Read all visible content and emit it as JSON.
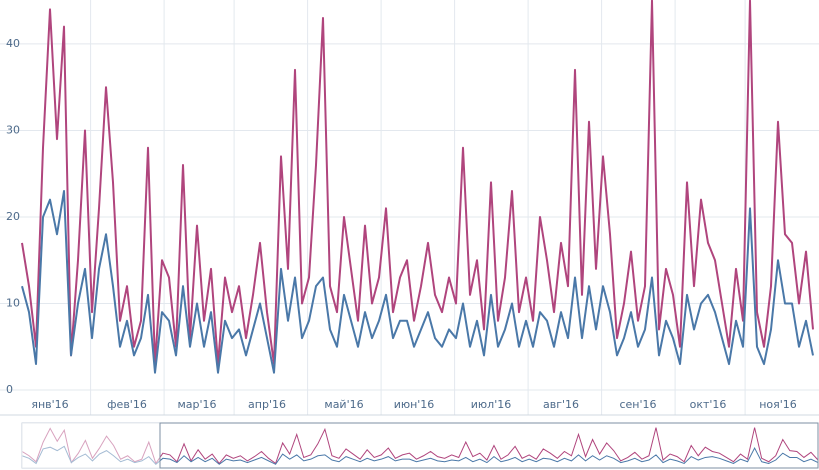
{
  "chart_data": {
    "type": "line",
    "categories": [
      null,
      null,
      null,
      null,
      "янв'16",
      null,
      null,
      null,
      null,
      null,
      null,
      null,
      null,
      null,
      null,
      "фев'16",
      null,
      null,
      null,
      null,
      null,
      null,
      null,
      null,
      null,
      "мар'16",
      null,
      null,
      null,
      null,
      null,
      null,
      null,
      null,
      null,
      "апр'16",
      null,
      null,
      null,
      null,
      null,
      null,
      null,
      null,
      null,
      null,
      "май'16",
      null,
      null,
      null,
      null,
      null,
      null,
      null,
      null,
      null,
      "июн'16",
      null,
      null,
      null,
      null,
      null,
      null,
      null,
      null,
      null,
      null,
      "июл'16",
      null,
      null,
      null,
      null,
      null,
      null,
      null,
      null,
      null,
      "авг'16",
      null,
      null,
      null,
      null,
      null,
      null,
      null,
      null,
      null,
      null,
      "сен'16",
      null,
      null,
      null,
      null,
      null,
      null,
      null,
      null,
      null,
      "окт'16",
      null,
      null,
      null,
      null,
      null,
      null,
      null,
      null,
      null,
      "ноя'16",
      null,
      null,
      null,
      null,
      null
    ],
    "series": [
      {
        "color": "#b0457d",
        "values": [
          17,
          12,
          5,
          28,
          44,
          29,
          42,
          4,
          15,
          30,
          9,
          21,
          35,
          24,
          8,
          12,
          5,
          8,
          28,
          3,
          15,
          13,
          5,
          26,
          6,
          19,
          8,
          14,
          3,
          13,
          9,
          12,
          6,
          11,
          17,
          9,
          3,
          27,
          14,
          37,
          10,
          13,
          26,
          43,
          12,
          9,
          20,
          14,
          8,
          19,
          10,
          13,
          21,
          9,
          13,
          15,
          8,
          12,
          17,
          11,
          9,
          13,
          10,
          28,
          11,
          15,
          7,
          24,
          8,
          13,
          23,
          9,
          13,
          8,
          20,
          15,
          9,
          17,
          12,
          37,
          11,
          31,
          14,
          27,
          18,
          6,
          10,
          16,
          8,
          12,
          45,
          7,
          14,
          11,
          5,
          24,
          12,
          22,
          17,
          15,
          10,
          5,
          14,
          8,
          45,
          9,
          5,
          12,
          31,
          18,
          17,
          10,
          16,
          7
        ]
      },
      {
        "color": "#4a78a8",
        "values": [
          12,
          9,
          3,
          20,
          22,
          18,
          23,
          4,
          10,
          14,
          6,
          14,
          18,
          12,
          5,
          8,
          4,
          6,
          11,
          2,
          9,
          8,
          4,
          12,
          5,
          10,
          5,
          9,
          2,
          8,
          6,
          7,
          4,
          7,
          10,
          6,
          2,
          14,
          8,
          13,
          6,
          8,
          12,
          13,
          7,
          5,
          11,
          8,
          5,
          9,
          6,
          8,
          11,
          6,
          8,
          8,
          5,
          7,
          9,
          6,
          5,
          7,
          6,
          10,
          5,
          8,
          4,
          11,
          5,
          7,
          10,
          5,
          8,
          5,
          9,
          8,
          5,
          9,
          6,
          13,
          6,
          12,
          7,
          12,
          9,
          4,
          6,
          9,
          5,
          7,
          13,
          4,
          8,
          6,
          3,
          11,
          7,
          10,
          11,
          9,
          6,
          3,
          8,
          5,
          21,
          5,
          3,
          7,
          15,
          10,
          10,
          5,
          8,
          4
        ]
      }
    ],
    "ylim": [
      0,
      44.5
    ],
    "yticks": [
      0,
      10,
      20,
      30,
      40
    ],
    "grid": true
  }
}
